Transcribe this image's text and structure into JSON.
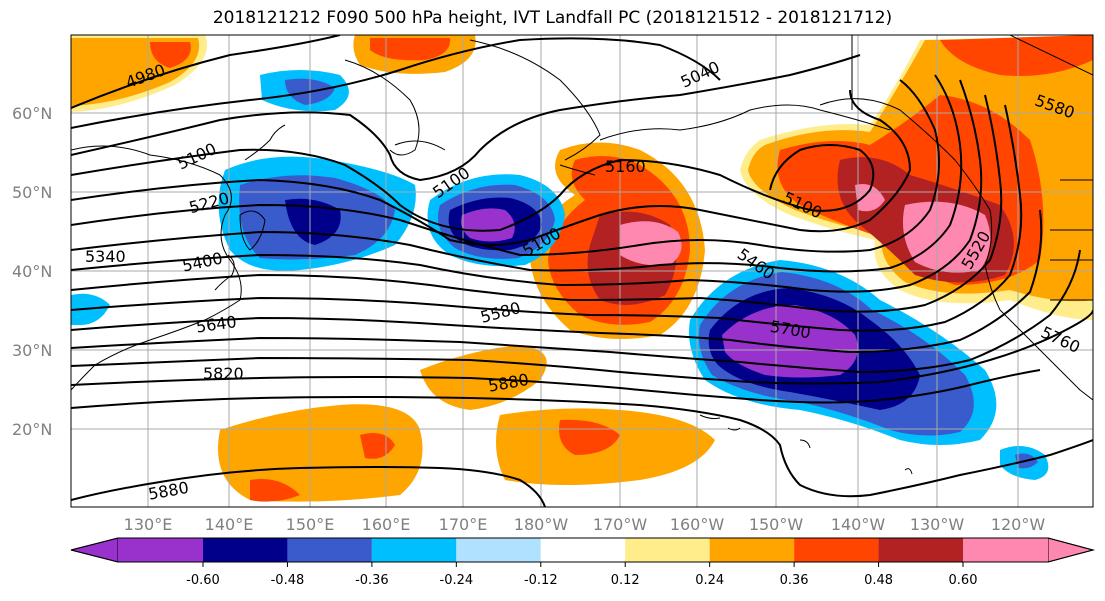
{
  "title": "2018121212 F090 500 hPa height, IVT Landfall PC (2018121512 - 2018121712)",
  "latitude_labels": [
    "20°N",
    "30°N",
    "40°N",
    "50°N",
    "60°N"
  ],
  "longitude_labels": [
    "130°E",
    "140°E",
    "150°E",
    "160°E",
    "170°E",
    "180°W",
    "170°W",
    "160°W",
    "150°W",
    "140°W",
    "130°W",
    "120°W"
  ],
  "colorbar": {
    "colors": [
      "#9932cc",
      "#00008b",
      "#3a5bcc",
      "#00bfff",
      "#b0e2ff",
      "#ffffff",
      "#ffec8b",
      "#ffa500",
      "#ff4500",
      "#b22222",
      "#ff88b0"
    ],
    "tick_labels": [
      "-0.60",
      "-0.48",
      "-0.36",
      "-0.24",
      "-0.12",
      "0.12",
      "0.24",
      "0.36",
      "0.48",
      "0.60"
    ]
  },
  "contour_labels": [
    "4980",
    "5040",
    "5100",
    "5100",
    "5100",
    "5100",
    "5160",
    "5220",
    "5340",
    "5400",
    "5460",
    "5520",
    "5580",
    "5580",
    "5640",
    "5700",
    "5760",
    "5820",
    "5880",
    "5880"
  ]
}
